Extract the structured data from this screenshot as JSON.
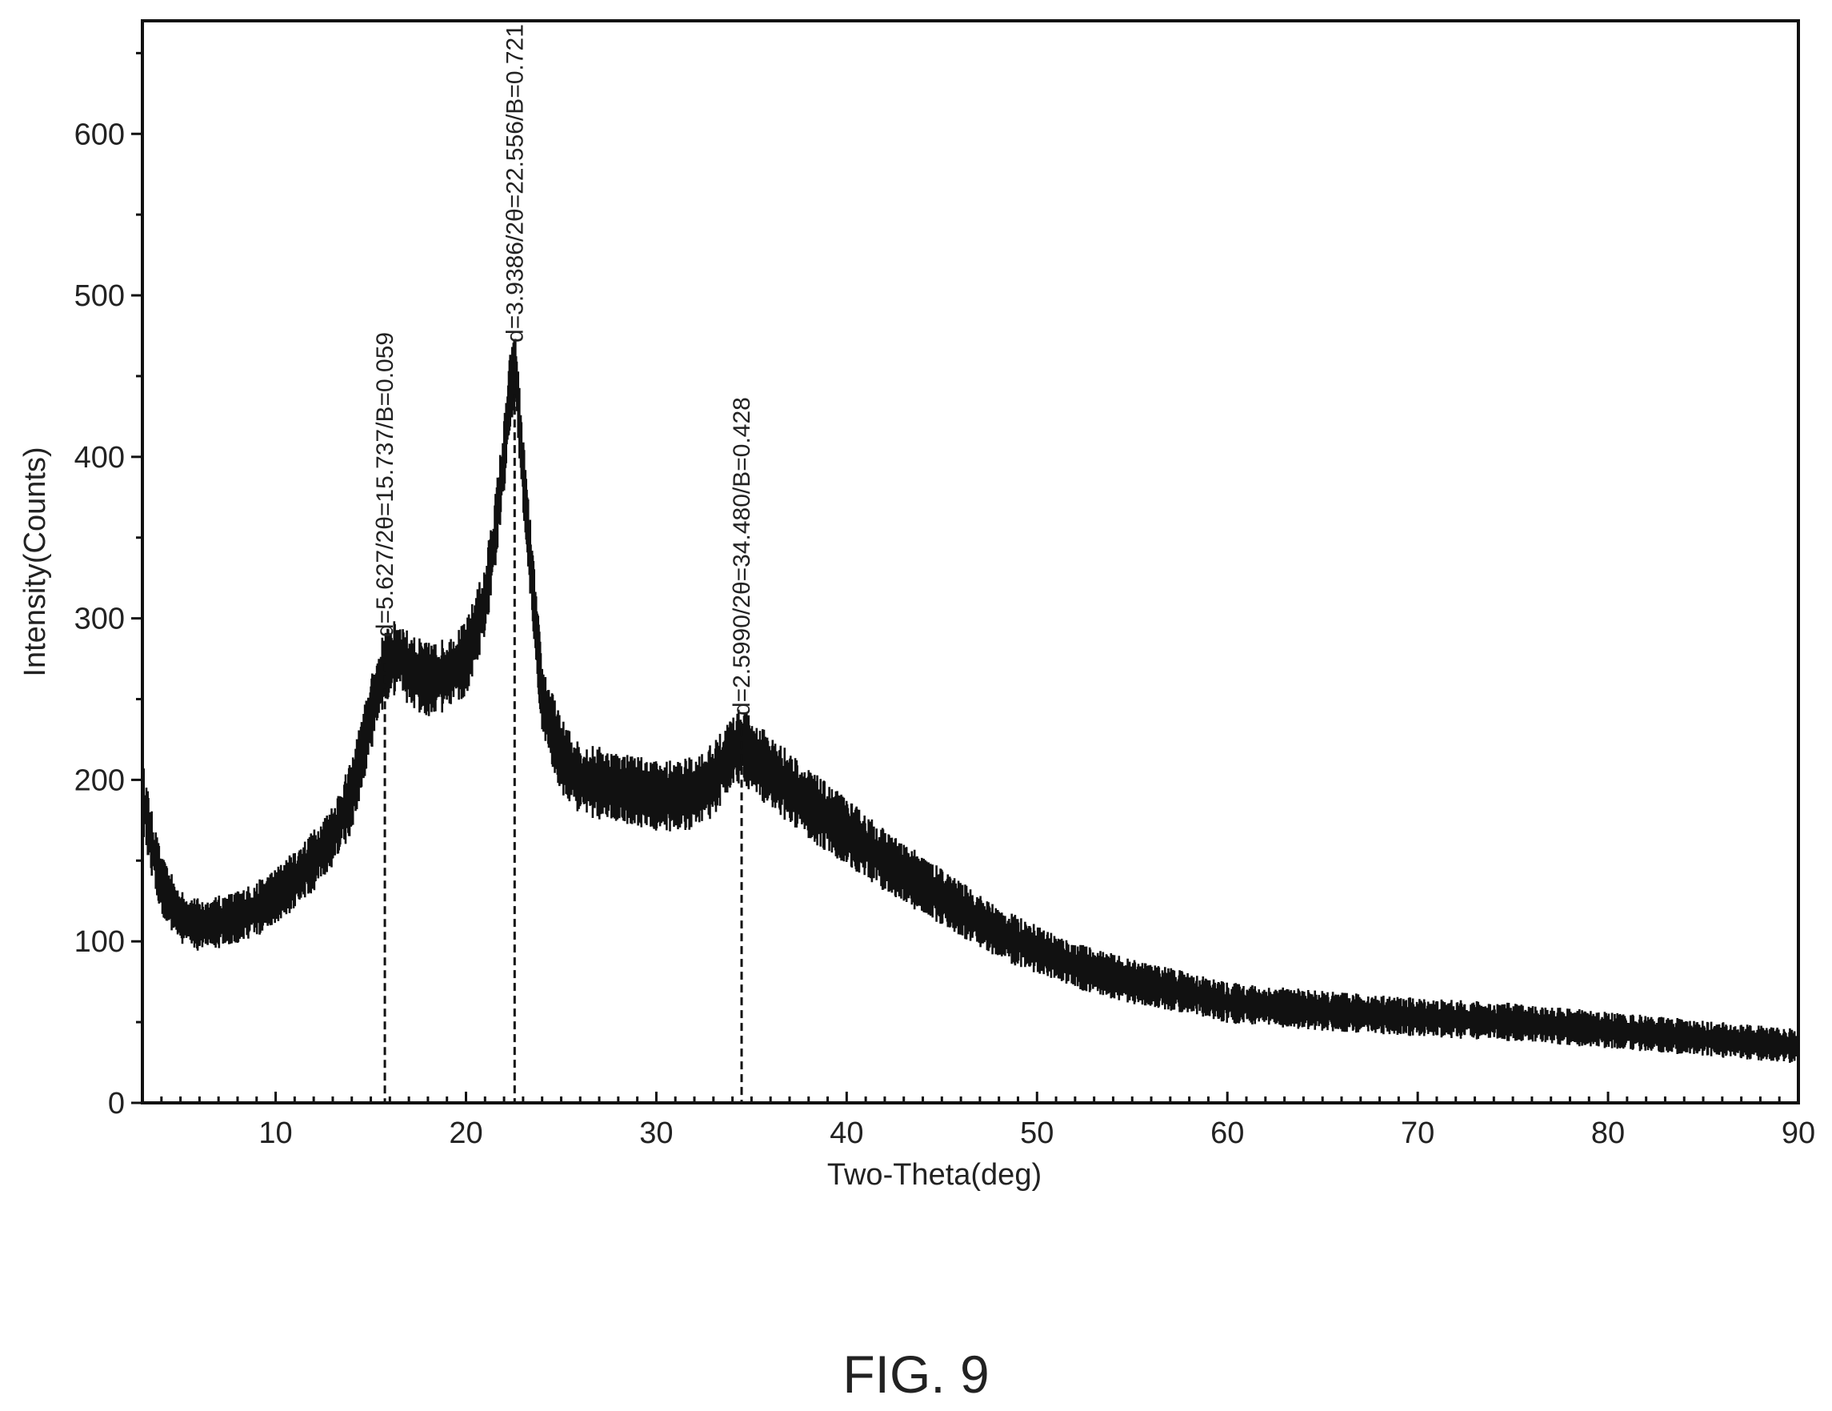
{
  "figure_caption": "FIG. 9",
  "colors": {
    "trace": "#111111",
    "axis": "#111111",
    "background": "#ffffff"
  },
  "chart_data": {
    "type": "line",
    "title": "",
    "xlabel": "Two-Theta(deg)",
    "ylabel": "Intensity(Counts)",
    "xlim": [
      3,
      90
    ],
    "ylim": [
      0,
      670
    ],
    "x_ticks": [
      10,
      20,
      30,
      40,
      50,
      60,
      70,
      80,
      90
    ],
    "y_ticks": [
      0,
      100,
      200,
      300,
      400,
      500,
      600
    ],
    "grid": false,
    "legend": "none",
    "noise_amplitude": 30,
    "baseline_profile": {
      "x": [
        3,
        3.5,
        4,
        5,
        6,
        7,
        8,
        9,
        10,
        11,
        12,
        13,
        14,
        15,
        15.7,
        16.5,
        17,
        18,
        19,
        20,
        21,
        21.5,
        22,
        22.3,
        22.6,
        23,
        23.5,
        24,
        25,
        26,
        27,
        28,
        29,
        30,
        31,
        32,
        33,
        34,
        34.5,
        35,
        36,
        37,
        38,
        40,
        42,
        44,
        46,
        48,
        50,
        52,
        55,
        58,
        60,
        65,
        70,
        75,
        80,
        85,
        90
      ],
      "y": [
        190,
        160,
        135,
        115,
        110,
        112,
        115,
        120,
        128,
        138,
        150,
        165,
        190,
        240,
        270,
        278,
        268,
        262,
        265,
        275,
        310,
        350,
        400,
        440,
        455,
        390,
        320,
        250,
        215,
        200,
        198,
        195,
        193,
        190,
        190,
        192,
        200,
        218,
        222,
        215,
        205,
        195,
        185,
        168,
        150,
        135,
        120,
        105,
        95,
        85,
        75,
        68,
        62,
        57,
        53,
        50,
        45,
        40,
        35
      ]
    },
    "peaks": [
      {
        "x": 15.737,
        "label": "d=5.627/2θ=15.737/B=0.059"
      },
      {
        "x": 22.556,
        "label": "d=3.9386/2θ=22.556/B=0.721"
      },
      {
        "x": 34.48,
        "label": "d=2.5990/2θ=34.480/B=0.428"
      }
    ]
  }
}
